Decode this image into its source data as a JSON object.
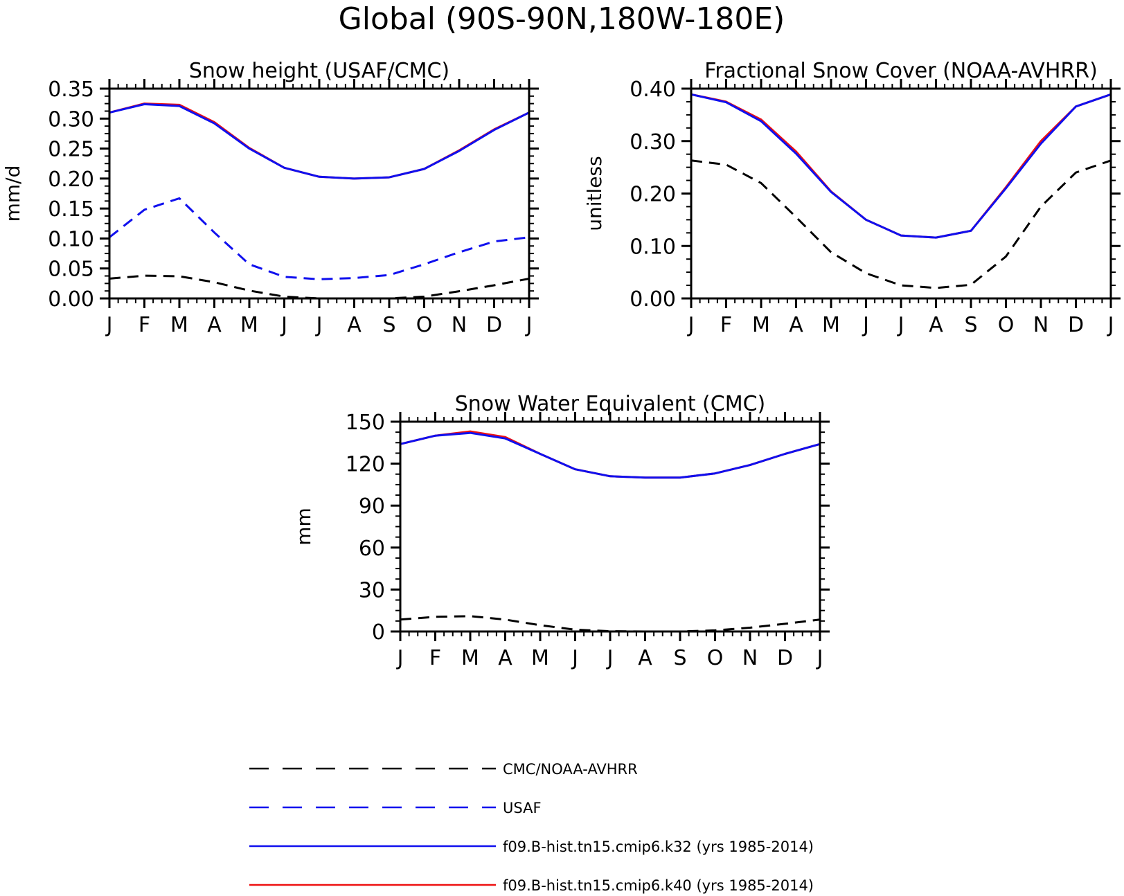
{
  "figure_title": "Global (90S-90N,180W-180E)",
  "colors": {
    "obs": "#000000",
    "usaf": "#1010ee",
    "k32": "#1010ee",
    "k40": "#ee1111"
  },
  "legend": {
    "position": "bottom-center",
    "items": [
      {
        "label": "CMC/NOAA-AVHRR",
        "color": "#000000",
        "style": "dashed"
      },
      {
        "label": "USAF",
        "color": "#1010ee",
        "style": "dashed"
      },
      {
        "label": "f09.B-hist.tn15.cmip6.k32 (yrs 1985-2014)",
        "color": "#1010ee",
        "style": "solid"
      },
      {
        "label": "f09.B-hist.tn15.cmip6.k40 (yrs 1985-2014)",
        "color": "#ee1111",
        "style": "solid"
      }
    ]
  },
  "chart_data": [
    {
      "type": "line",
      "title": "Snow height (USAF/CMC)",
      "xlabel": "",
      "ylabel": "mm/d",
      "categories": [
        "J",
        "F",
        "M",
        "A",
        "M",
        "J",
        "J",
        "A",
        "S",
        "O",
        "N",
        "D",
        "J"
      ],
      "ylim": [
        0,
        0.35
      ],
      "yticks": [
        "0.00",
        "0.05",
        "0.10",
        "0.15",
        "0.20",
        "0.25",
        "0.30",
        "0.35"
      ],
      "grid": false,
      "series": [
        {
          "name": "CMC/NOAA-AVHRR",
          "color": "#000000",
          "style": "dashed",
          "values": [
            0.033,
            0.038,
            0.037,
            0.027,
            0.013,
            0.003,
            0.0,
            0.0,
            0.0,
            0.003,
            0.012,
            0.022,
            0.033
          ]
        },
        {
          "name": "USAF",
          "color": "#1010ee",
          "style": "dashed",
          "values": [
            0.102,
            0.148,
            0.167,
            0.11,
            0.057,
            0.036,
            0.032,
            0.034,
            0.039,
            0.057,
            0.077,
            0.095,
            0.102
          ]
        },
        {
          "name": "f09.B-hist.tn15.cmip6.k40 (yrs 1985-2014)",
          "color": "#ee1111",
          "style": "solid",
          "values": [
            0.31,
            0.325,
            0.323,
            0.294,
            0.251,
            0.218,
            0.203,
            0.2,
            0.202,
            0.216,
            0.247,
            0.282,
            0.31
          ]
        },
        {
          "name": "f09.B-hist.tn15.cmip6.k32 (yrs 1985-2014)",
          "color": "#1010ee",
          "style": "solid",
          "values": [
            0.31,
            0.324,
            0.321,
            0.292,
            0.25,
            0.218,
            0.203,
            0.2,
            0.202,
            0.216,
            0.246,
            0.281,
            0.31
          ]
        }
      ]
    },
    {
      "type": "line",
      "title": "Fractional Snow Cover (NOAA-AVHRR)",
      "xlabel": "",
      "ylabel": "unitless",
      "categories": [
        "J",
        "F",
        "M",
        "A",
        "M",
        "J",
        "J",
        "A",
        "S",
        "O",
        "N",
        "D",
        "J"
      ],
      "ylim": [
        0,
        0.4
      ],
      "yticks": [
        "0.00",
        "0.10",
        "0.20",
        "0.30",
        "0.40"
      ],
      "grid": false,
      "series": [
        {
          "name": "CMC/NOAA-AVHRR",
          "color": "#000000",
          "style": "dashed",
          "values": [
            0.263,
            0.255,
            0.22,
            0.155,
            0.088,
            0.048,
            0.025,
            0.02,
            0.026,
            0.08,
            0.175,
            0.24,
            0.263
          ]
        },
        {
          "name": "f09.B-hist.tn15.cmip6.k40 (yrs 1985-2014)",
          "color": "#ee1111",
          "style": "solid",
          "values": [
            0.389,
            0.375,
            0.341,
            0.28,
            0.204,
            0.15,
            0.12,
            0.116,
            0.129,
            0.212,
            0.3,
            0.366,
            0.389
          ]
        },
        {
          "name": "f09.B-hist.tn15.cmip6.k32 (yrs 1985-2014)",
          "color": "#1010ee",
          "style": "solid",
          "values": [
            0.389,
            0.374,
            0.338,
            0.276,
            0.203,
            0.15,
            0.12,
            0.116,
            0.129,
            0.21,
            0.295,
            0.366,
            0.389
          ]
        }
      ]
    },
    {
      "type": "line",
      "title": "Snow Water Equivalent (CMC)",
      "xlabel": "",
      "ylabel": "mm",
      "categories": [
        "J",
        "F",
        "M",
        "A",
        "M",
        "J",
        "J",
        "A",
        "S",
        "O",
        "N",
        "D",
        "J"
      ],
      "ylim": [
        0,
        150
      ],
      "yticks": [
        "0",
        "30",
        "60",
        "90",
        "120",
        "150"
      ],
      "grid": false,
      "series": [
        {
          "name": "CMC/NOAA-AVHRR",
          "color": "#000000",
          "style": "dashed",
          "values": [
            8.5,
            10.5,
            11.0,
            8.5,
            4.5,
            1.3,
            0.2,
            0.0,
            0.0,
            0.8,
            2.7,
            5.5,
            8.5
          ]
        },
        {
          "name": "f09.B-hist.tn15.cmip6.k40 (yrs 1985-2014)",
          "color": "#ee1111",
          "style": "solid",
          "values": [
            134,
            140,
            143,
            139,
            127,
            116,
            111,
            110,
            110,
            113,
            119,
            127,
            134
          ]
        },
        {
          "name": "f09.B-hist.tn15.cmip6.k32 (yrs 1985-2014)",
          "color": "#1010ee",
          "style": "solid",
          "values": [
            134,
            140,
            142,
            138,
            127,
            116,
            111,
            110,
            110,
            113,
            119,
            127,
            134
          ]
        }
      ]
    }
  ]
}
